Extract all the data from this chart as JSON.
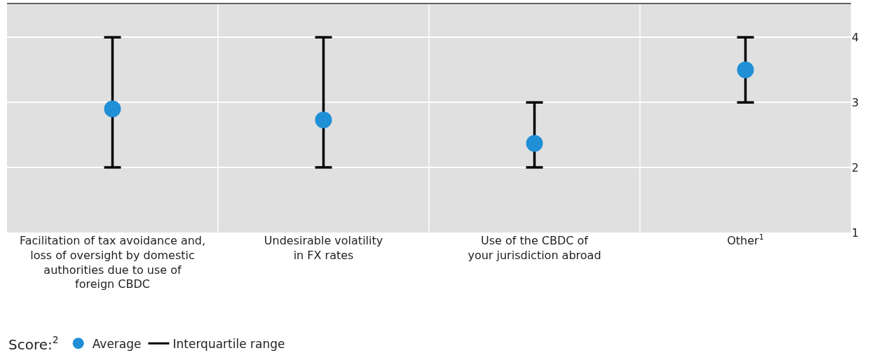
{
  "chart_data": {
    "type": "scatter",
    "categories": [
      "Facilitation of tax avoidance and,\nloss of oversight by domestic\nauthorities due to use of\nforeign CBDC",
      "Undesirable volatility\nin FX rates",
      "Use of the CBDC of\nyour jurisdiction abroad",
      "Other$^{1}$"
    ],
    "series": [
      {
        "name": "Average",
        "color": "#1f8fd6",
        "values": [
          2.9,
          2.73,
          2.37,
          3.5
        ],
        "errors": [
          [
            2,
            4
          ],
          [
            2,
            4
          ],
          [
            2,
            3
          ],
          [
            3,
            4
          ]
        ]
      }
    ],
    "legend_title": "Score:$^{2}$",
    "annotations": [
      "Interquartile range"
    ],
    "ylim": [
      1,
      4.52
    ],
    "yticks": [
      1,
      2,
      3,
      4
    ],
    "grid": "y",
    "legend": "bottom left",
    "marker": "circle"
  }
}
